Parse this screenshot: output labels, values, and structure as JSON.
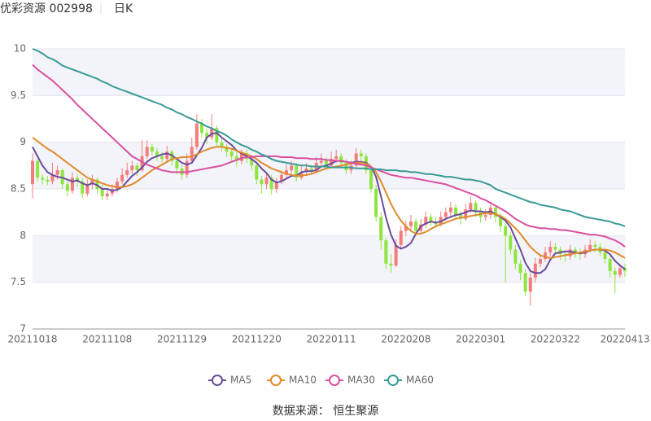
{
  "chart_data": {
    "type": "candlestick",
    "title": "优彩资源 002998",
    "period": "日K",
    "source": "数据来源： 恒生聚源",
    "up_color": "#f47c7c",
    "down_color": "#8ee53f",
    "ylim": [
      7,
      10
    ],
    "yticks": [
      7,
      7.5,
      8,
      8.5,
      9,
      9.5,
      10
    ],
    "grid": true,
    "categories": [
      "20211018",
      null,
      null,
      null,
      null,
      null,
      null,
      null,
      null,
      null,
      null,
      null,
      null,
      null,
      null,
      "20211108",
      null,
      null,
      null,
      null,
      null,
      null,
      null,
      null,
      null,
      null,
      null,
      null,
      null,
      null,
      "20211129",
      null,
      null,
      null,
      null,
      null,
      null,
      null,
      null,
      null,
      null,
      null,
      null,
      null,
      null,
      "20211220",
      null,
      null,
      null,
      null,
      null,
      null,
      null,
      null,
      null,
      null,
      null,
      null,
      null,
      null,
      "20220111",
      null,
      null,
      null,
      null,
      null,
      null,
      null,
      null,
      null,
      null,
      null,
      null,
      null,
      null,
      "20220208",
      null,
      null,
      null,
      null,
      null,
      null,
      null,
      null,
      null,
      null,
      null,
      null,
      null,
      null,
      "20220301",
      null,
      null,
      null,
      null,
      null,
      null,
      null,
      null,
      null,
      null,
      null,
      null,
      null,
      null,
      "20220322",
      null,
      null,
      null,
      null,
      null,
      null,
      null,
      null,
      null,
      null,
      null,
      null,
      null,
      "20220413"
    ],
    "open": [
      8.55,
      8.8,
      8.62,
      8.6,
      8.58,
      8.65,
      8.7,
      8.55,
      8.48,
      8.62,
      8.58,
      8.45,
      8.55,
      8.6,
      8.5,
      8.42,
      8.45,
      8.5,
      8.58,
      8.65,
      8.7,
      8.75,
      8.7,
      8.85,
      8.95,
      8.9,
      8.85,
      8.82,
      8.9,
      8.8,
      8.72,
      8.65,
      8.8,
      8.95,
      9.2,
      9.1,
      9.05,
      9.15,
      9.0,
      8.95,
      8.9,
      8.85,
      8.8,
      8.88,
      8.82,
      8.75,
      8.6,
      8.55,
      8.62,
      8.5,
      8.58,
      8.65,
      8.7,
      8.75,
      8.62,
      8.68,
      8.72,
      8.7,
      8.78,
      8.8,
      8.75,
      8.82,
      8.85,
      8.78,
      8.7,
      8.75,
      8.88,
      8.85,
      8.7,
      8.5,
      8.2,
      7.95,
      7.7,
      7.68,
      7.9,
      8.05,
      8.1,
      8.15,
      8.05,
      8.12,
      8.2,
      8.15,
      8.12,
      8.2,
      8.25,
      8.3,
      8.22,
      8.18,
      8.28,
      8.35,
      8.25,
      8.2,
      8.22,
      8.3,
      8.2,
      8.1,
      8.0,
      7.85,
      7.7,
      7.6,
      7.4,
      7.55,
      7.7,
      7.75,
      7.82,
      7.88,
      7.85,
      7.8,
      7.78,
      7.85,
      7.82,
      7.8,
      7.85,
      7.9,
      7.88,
      7.82,
      7.75,
      7.62,
      7.58,
      7.65
    ],
    "high": [
      8.88,
      8.82,
      8.66,
      8.64,
      8.78,
      8.75,
      8.72,
      8.6,
      8.68,
      8.66,
      8.62,
      8.6,
      8.65,
      8.62,
      8.55,
      8.5,
      8.55,
      8.62,
      8.72,
      8.78,
      8.8,
      8.78,
      9.02,
      9.02,
      8.98,
      8.94,
      8.9,
      8.96,
      8.92,
      8.84,
      8.76,
      8.88,
      9.05,
      9.3,
      9.25,
      9.15,
      9.3,
      9.18,
      9.05,
      8.98,
      8.94,
      8.9,
      8.92,
      8.92,
      8.86,
      8.78,
      8.64,
      8.66,
      8.65,
      8.62,
      8.7,
      8.76,
      8.8,
      8.78,
      8.74,
      8.78,
      8.76,
      8.84,
      8.88,
      8.84,
      8.9,
      8.92,
      8.88,
      8.82,
      8.8,
      8.94,
      8.92,
      8.88,
      8.74,
      8.54,
      8.25,
      7.98,
      7.8,
      7.96,
      8.1,
      8.16,
      8.22,
      8.18,
      8.18,
      8.26,
      8.24,
      8.2,
      8.26,
      8.3,
      8.36,
      8.34,
      8.26,
      8.34,
      8.42,
      8.38,
      8.3,
      8.28,
      8.36,
      8.32,
      8.24,
      8.14,
      8.04,
      7.9,
      7.74,
      7.64,
      7.6,
      7.76,
      7.8,
      7.88,
      7.94,
      7.92,
      7.88,
      7.84,
      7.9,
      7.88,
      7.86,
      7.9,
      7.96,
      7.94,
      7.92,
      7.86,
      7.78,
      7.66,
      7.7,
      7.7
    ],
    "low": [
      8.4,
      8.58,
      8.55,
      8.54,
      8.55,
      8.6,
      8.5,
      8.42,
      8.45,
      8.52,
      8.4,
      8.42,
      8.5,
      8.45,
      8.38,
      8.38,
      8.42,
      8.46,
      8.55,
      8.62,
      8.66,
      8.64,
      8.68,
      8.82,
      8.86,
      8.8,
      8.78,
      8.78,
      8.75,
      8.66,
      8.6,
      8.62,
      8.78,
      8.92,
      9.05,
      8.98,
      9.02,
      8.95,
      8.9,
      8.84,
      8.8,
      8.74,
      8.76,
      8.78,
      8.7,
      8.55,
      8.45,
      8.5,
      8.44,
      8.46,
      8.55,
      8.62,
      8.66,
      8.58,
      8.6,
      8.64,
      8.66,
      8.68,
      8.74,
      8.7,
      8.72,
      8.78,
      8.72,
      8.66,
      8.66,
      8.72,
      8.8,
      8.66,
      8.46,
      8.15,
      7.85,
      7.64,
      7.6,
      7.66,
      7.86,
      8.0,
      8.06,
      8.0,
      8.02,
      8.08,
      8.1,
      8.08,
      8.1,
      8.16,
      8.2,
      8.18,
      8.12,
      8.16,
      8.24,
      8.2,
      8.14,
      8.16,
      8.18,
      8.14,
      8.04,
      7.5,
      7.8,
      7.64,
      7.52,
      7.35,
      7.25,
      7.5,
      7.66,
      7.72,
      7.78,
      7.8,
      7.74,
      7.72,
      7.74,
      7.76,
      7.74,
      7.76,
      7.82,
      7.82,
      7.78,
      7.7,
      7.55,
      7.38,
      7.55,
      7.56
    ],
    "close": [
      8.8,
      8.62,
      8.6,
      8.58,
      8.65,
      8.7,
      8.55,
      8.48,
      8.62,
      8.58,
      8.45,
      8.55,
      8.6,
      8.5,
      8.42,
      8.45,
      8.5,
      8.58,
      8.65,
      8.7,
      8.75,
      8.7,
      8.85,
      8.95,
      8.9,
      8.85,
      8.82,
      8.9,
      8.8,
      8.72,
      8.65,
      8.8,
      8.95,
      9.2,
      9.1,
      9.05,
      9.15,
      9.0,
      8.95,
      8.9,
      8.85,
      8.8,
      8.88,
      8.82,
      8.75,
      8.6,
      8.55,
      8.62,
      8.5,
      8.58,
      8.65,
      8.7,
      8.75,
      8.62,
      8.68,
      8.72,
      8.7,
      8.78,
      8.8,
      8.75,
      8.82,
      8.85,
      8.78,
      8.7,
      8.75,
      8.88,
      8.85,
      8.7,
      8.5,
      8.2,
      7.95,
      7.7,
      7.68,
      7.9,
      8.05,
      8.1,
      8.15,
      8.05,
      8.12,
      8.2,
      8.15,
      8.12,
      8.2,
      8.25,
      8.3,
      8.22,
      8.18,
      8.28,
      8.35,
      8.25,
      8.2,
      8.22,
      8.3,
      8.2,
      8.1,
      8.0,
      7.85,
      7.7,
      7.6,
      7.4,
      7.55,
      7.7,
      7.75,
      7.82,
      7.88,
      7.85,
      7.8,
      7.78,
      7.85,
      7.82,
      7.8,
      7.85,
      7.9,
      7.88,
      7.82,
      7.75,
      7.62,
      7.58,
      7.65,
      7.62
    ],
    "series": [
      {
        "name": "MA5",
        "color": "#6a4c9c",
        "values": [
          8.95,
          8.85,
          8.75,
          8.68,
          8.65,
          8.63,
          8.62,
          8.6,
          8.58,
          8.59,
          8.56,
          8.54,
          8.56,
          8.54,
          8.5,
          8.5,
          8.48,
          8.49,
          8.52,
          8.58,
          8.64,
          8.68,
          8.73,
          8.79,
          8.83,
          8.85,
          8.87,
          8.88,
          8.86,
          8.82,
          8.78,
          8.76,
          8.78,
          8.86,
          8.94,
          9.05,
          9.09,
          9.1,
          9.05,
          9.01,
          8.97,
          8.91,
          8.88,
          8.85,
          8.82,
          8.78,
          8.72,
          8.67,
          8.6,
          8.57,
          8.58,
          8.61,
          8.64,
          8.64,
          8.68,
          8.69,
          8.69,
          8.7,
          8.74,
          8.75,
          8.77,
          8.8,
          8.8,
          8.79,
          8.78,
          8.79,
          8.79,
          8.78,
          8.74,
          8.63,
          8.42,
          8.19,
          8.01,
          7.89,
          7.86,
          7.88,
          7.92,
          8.02,
          8.1,
          8.13,
          8.15,
          8.14,
          8.15,
          8.18,
          8.2,
          8.22,
          8.23,
          8.25,
          8.27,
          8.26,
          8.26,
          8.25,
          8.26,
          8.23,
          8.2,
          8.16,
          8.09,
          7.97,
          7.85,
          7.71,
          7.62,
          7.6,
          7.6,
          7.64,
          7.74,
          7.81,
          7.82,
          7.83,
          7.83,
          7.82,
          7.81,
          7.82,
          7.84,
          7.85,
          7.85,
          7.84,
          7.8,
          7.73,
          7.68,
          7.64
        ]
      },
      {
        "name": "MA10",
        "color": "#e08a2c",
        "values": [
          9.05,
          9.01,
          8.97,
          8.93,
          8.9,
          8.86,
          8.82,
          8.78,
          8.74,
          8.7,
          8.66,
          8.62,
          8.6,
          8.58,
          8.56,
          8.54,
          8.53,
          8.52,
          8.52,
          8.53,
          8.55,
          8.58,
          8.62,
          8.66,
          8.7,
          8.73,
          8.76,
          8.79,
          8.82,
          8.83,
          8.84,
          8.84,
          8.85,
          8.87,
          8.9,
          8.92,
          8.94,
          8.95,
          8.95,
          8.94,
          8.93,
          8.91,
          8.89,
          8.87,
          8.85,
          8.82,
          8.78,
          8.75,
          8.72,
          8.7,
          8.68,
          8.66,
          8.65,
          8.64,
          8.64,
          8.65,
          8.66,
          8.68,
          8.7,
          8.72,
          8.73,
          8.74,
          8.75,
          8.76,
          8.77,
          8.78,
          8.78,
          8.77,
          8.74,
          8.68,
          8.58,
          8.46,
          8.34,
          8.24,
          8.16,
          8.1,
          8.05,
          8.02,
          8.02,
          8.04,
          8.07,
          8.1,
          8.12,
          8.14,
          8.16,
          8.18,
          8.19,
          8.2,
          8.21,
          8.22,
          8.23,
          8.24,
          8.24,
          8.23,
          8.21,
          8.18,
          8.13,
          8.08,
          8.02,
          7.95,
          7.88,
          7.83,
          7.79,
          7.77,
          7.76,
          7.77,
          7.78,
          7.79,
          7.8,
          7.81,
          7.82,
          7.83,
          7.84,
          7.85,
          7.85,
          7.85,
          7.84,
          7.82,
          7.79,
          7.76
        ]
      },
      {
        "name": "MA30",
        "color": "#d94fa0",
        "values": [
          9.83,
          9.78,
          9.74,
          9.7,
          9.66,
          9.61,
          9.56,
          9.51,
          9.46,
          9.4,
          9.35,
          9.3,
          9.25,
          9.2,
          9.15,
          9.1,
          9.05,
          9.0,
          8.95,
          8.9,
          8.85,
          8.82,
          8.79,
          8.76,
          8.74,
          8.72,
          8.7,
          8.69,
          8.68,
          8.68,
          8.68,
          8.68,
          8.69,
          8.7,
          8.71,
          8.72,
          8.73,
          8.74,
          8.75,
          8.77,
          8.79,
          8.81,
          8.83,
          8.84,
          8.84,
          8.85,
          8.85,
          8.85,
          8.85,
          8.85,
          8.84,
          8.84,
          8.84,
          8.83,
          8.83,
          8.83,
          8.82,
          8.82,
          8.82,
          8.81,
          8.81,
          8.8,
          8.8,
          8.79,
          8.78,
          8.77,
          8.76,
          8.75,
          8.73,
          8.71,
          8.69,
          8.67,
          8.65,
          8.64,
          8.63,
          8.62,
          8.62,
          8.61,
          8.6,
          8.59,
          8.58,
          8.57,
          8.56,
          8.55,
          8.53,
          8.51,
          8.49,
          8.47,
          8.45,
          8.43,
          8.4,
          8.38,
          8.35,
          8.32,
          8.29,
          8.26,
          8.22,
          8.18,
          8.15,
          8.12,
          8.1,
          8.09,
          8.08,
          8.08,
          8.07,
          8.07,
          8.06,
          8.06,
          8.05,
          8.04,
          8.03,
          8.02,
          8.01,
          8.01,
          8.0,
          7.99,
          7.97,
          7.95,
          7.92,
          7.88
        ]
      },
      {
        "name": "MA60",
        "color": "#3a9a96",
        "values": [
          10.0,
          9.98,
          9.95,
          9.91,
          9.89,
          9.86,
          9.82,
          9.8,
          9.78,
          9.76,
          9.74,
          9.72,
          9.7,
          9.68,
          9.65,
          9.63,
          9.6,
          9.58,
          9.56,
          9.54,
          9.52,
          9.5,
          9.48,
          9.46,
          9.44,
          9.42,
          9.4,
          9.37,
          9.35,
          9.32,
          9.3,
          9.27,
          9.25,
          9.22,
          9.2,
          9.17,
          9.15,
          9.12,
          9.1,
          9.07,
          9.03,
          9.0,
          8.97,
          8.95,
          8.92,
          8.9,
          8.87,
          8.85,
          8.82,
          8.8,
          8.79,
          8.78,
          8.77,
          8.76,
          8.75,
          8.75,
          8.74,
          8.74,
          8.74,
          8.74,
          8.73,
          8.73,
          8.73,
          8.73,
          8.73,
          8.72,
          8.72,
          8.72,
          8.71,
          8.71,
          8.71,
          8.7,
          8.7,
          8.7,
          8.69,
          8.69,
          8.68,
          8.68,
          8.67,
          8.66,
          8.66,
          8.65,
          8.64,
          8.63,
          8.63,
          8.62,
          8.61,
          8.6,
          8.6,
          8.59,
          8.58,
          8.56,
          8.54,
          8.5,
          8.48,
          8.46,
          8.44,
          8.42,
          8.4,
          8.38,
          8.36,
          8.35,
          8.33,
          8.32,
          8.31,
          8.3,
          8.28,
          8.27,
          8.26,
          8.24,
          8.22,
          8.2,
          8.19,
          8.18,
          8.17,
          8.16,
          8.15,
          8.13,
          8.12,
          8.1
        ]
      }
    ]
  }
}
